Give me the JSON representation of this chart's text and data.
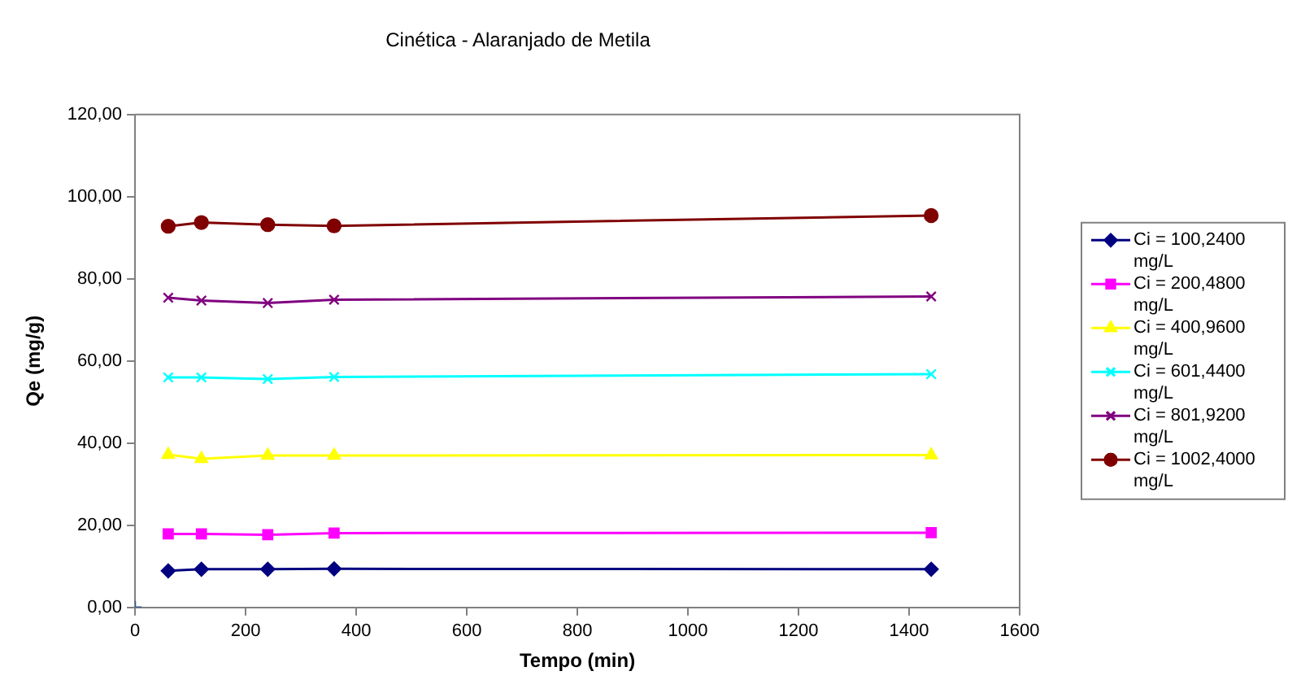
{
  "chart_data": {
    "type": "line",
    "title": "Cinética - Alaranjado de Metila",
    "xlabel": "Tempo (min)",
    "ylabel": "Qe (mg/g)",
    "x": [
      60,
      120,
      240,
      360,
      1440
    ],
    "series": [
      {
        "name": "Ci = 100,2400 mg/L",
        "color": "#000080",
        "marker": "diamond",
        "values": [
          8.9,
          9.3,
          9.3,
          9.4,
          9.3
        ]
      },
      {
        "name": "Ci = 200,4800 mg/L",
        "color": "#ff00ff",
        "marker": "square",
        "values": [
          17.9,
          17.9,
          17.7,
          18.1,
          18.2
        ]
      },
      {
        "name": "Ci = 400,9600 mg/L",
        "color": "#ffff00",
        "marker": "triangle",
        "values": [
          37.2,
          36.2,
          37.0,
          37.0,
          37.1
        ]
      },
      {
        "name": "Ci = 601,4400 mg/L",
        "color": "#00ffff",
        "marker": "cross",
        "values": [
          56.0,
          56.0,
          55.6,
          56.1,
          56.8
        ]
      },
      {
        "name": "Ci = 801,9200 mg/L",
        "color": "#800080",
        "marker": "cross",
        "values": [
          75.4,
          74.7,
          74.1,
          74.9,
          75.7
        ]
      },
      {
        "name": "Ci = 1002,4000 mg/L",
        "color": "#800000",
        "marker": "circle",
        "values": [
          92.8,
          93.7,
          93.2,
          92.9,
          95.4
        ]
      },
      {
        "type": "scatter",
        "x": [
          0
        ],
        "color": "#2f5597",
        "marker": "cross",
        "values": [
          0
        ]
      }
    ],
    "xlim": [
      0,
      1600
    ],
    "xticks": [
      0,
      200,
      400,
      600,
      800,
      1000,
      1200,
      1400,
      1600
    ],
    "ylim": [
      0,
      120
    ],
    "yticks": [
      {
        "value": 0,
        "label": "0,00"
      },
      {
        "value": 20,
        "label": "20,00"
      },
      {
        "value": 40,
        "label": "40,00"
      },
      {
        "value": 60,
        "label": "60,00"
      },
      {
        "value": 80,
        "label": "80,00"
      },
      {
        "value": 100,
        "label": "100,00"
      },
      {
        "value": 120,
        "label": "120,00"
      }
    ],
    "grid": false,
    "legend": "right"
  }
}
